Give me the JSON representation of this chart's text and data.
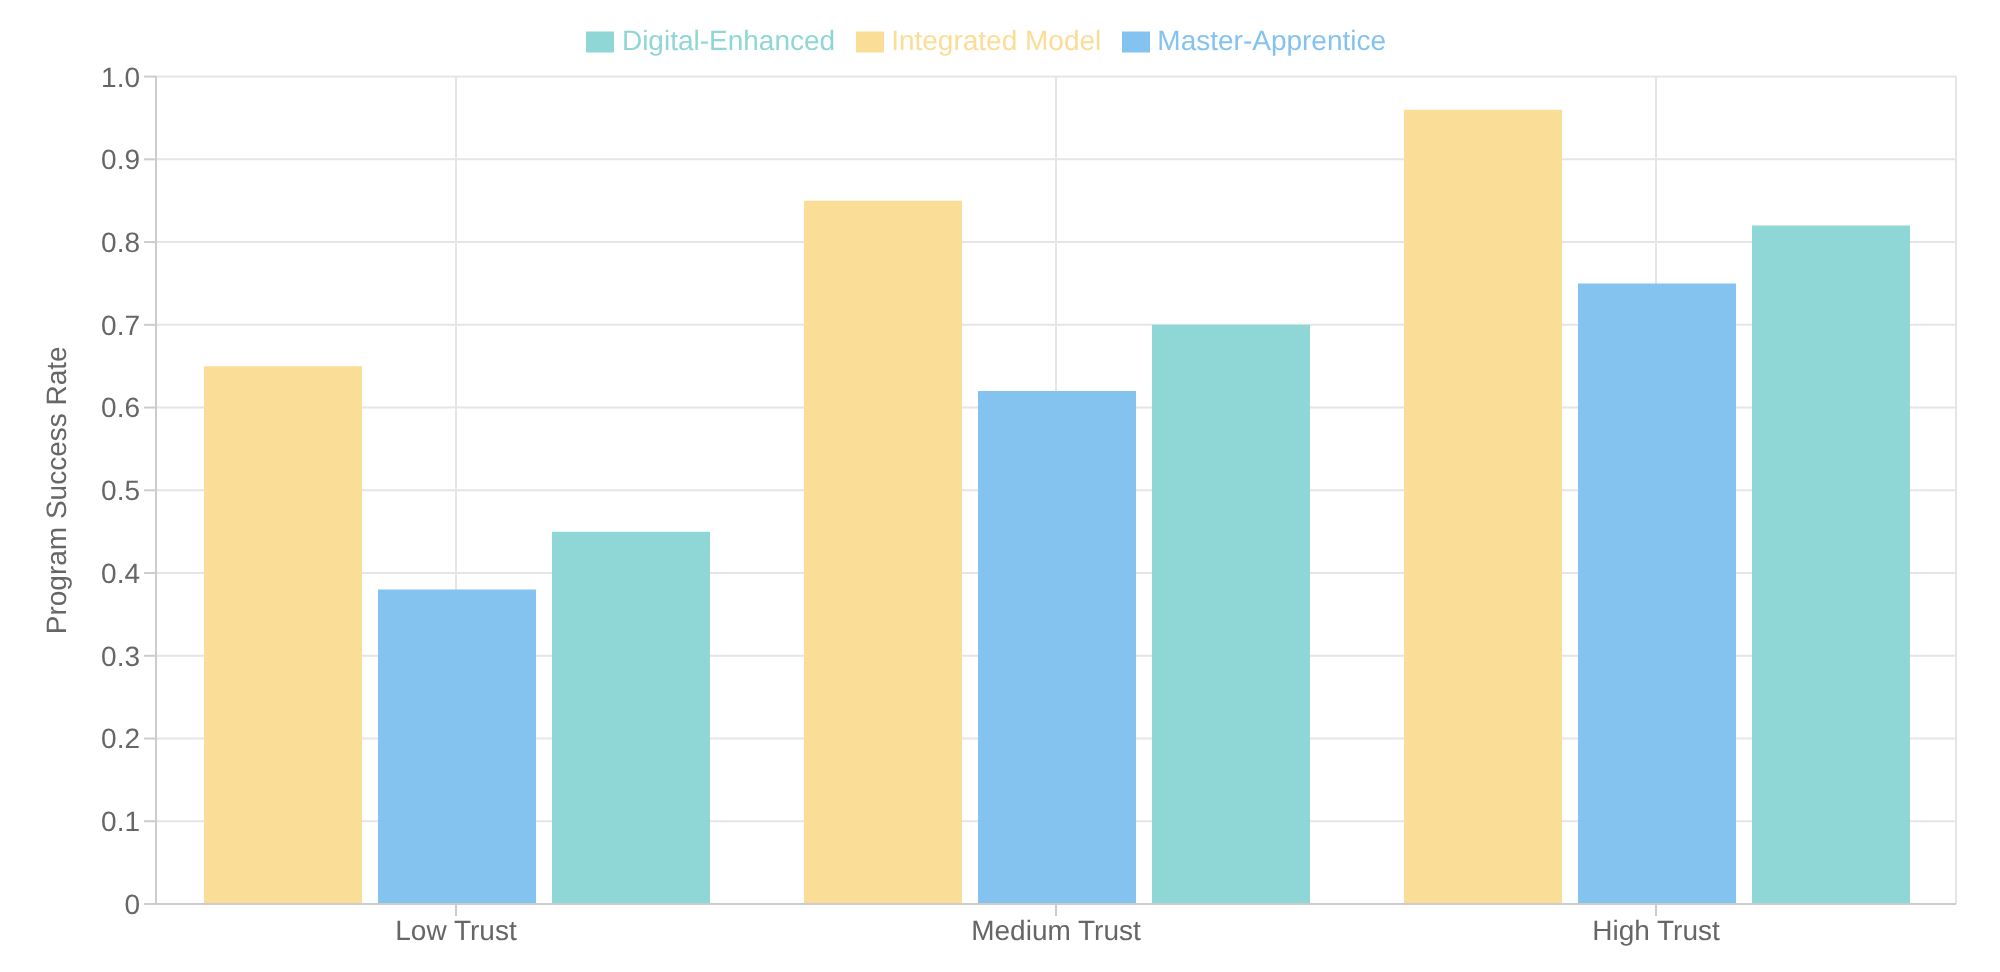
{
  "chart_data": {
    "type": "bar",
    "ylabel": "Program Success Rate",
    "categories": [
      "Low Trust",
      "Medium Trust",
      "High Trust"
    ],
    "series": [
      {
        "name": "Integrated Model",
        "color": "#fadd96",
        "values": [
          0.65,
          0.85,
          0.96
        ]
      },
      {
        "name": "Master-Apprentice",
        "color": "#84c3f0",
        "values": [
          0.38,
          0.62,
          0.75
        ]
      },
      {
        "name": "Digital-Enhanced",
        "color": "#8fd6d6",
        "values": [
          0.45,
          0.7,
          0.82
        ]
      }
    ],
    "ylim": [
      0,
      1
    ],
    "yticks": [
      0,
      0.1,
      0.2,
      0.3,
      0.4,
      0.5,
      0.6,
      0.7,
      0.8,
      0.9,
      {
        "value": 1,
        "label": "1.0"
      }
    ],
    "grid": true,
    "legend": "top"
  }
}
